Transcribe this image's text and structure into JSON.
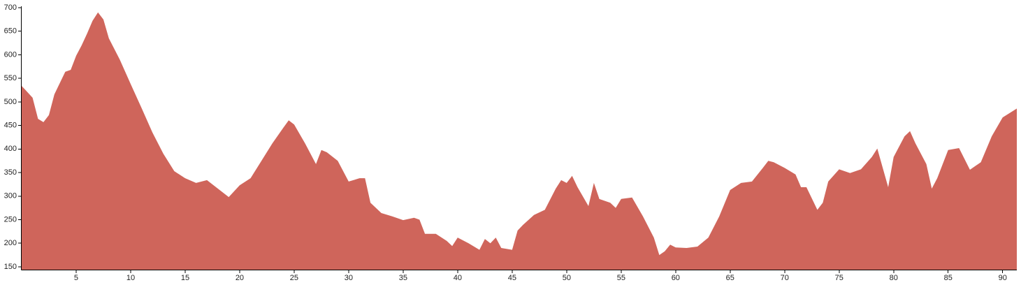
{
  "chart_data": {
    "type": "area",
    "color": "#cf655b",
    "x": [
      0,
      1,
      1.5,
      2,
      2.5,
      3,
      4,
      4.5,
      5,
      5.5,
      6,
      6.5,
      7,
      7.5,
      8,
      9,
      10,
      11,
      12,
      13,
      14,
      15,
      16,
      17,
      18,
      19,
      20,
      21,
      22,
      23,
      24,
      24.5,
      25,
      26,
      27,
      27.5,
      28,
      29,
      30,
      31,
      31.5,
      32,
      33,
      34,
      35,
      36,
      36.5,
      37,
      38,
      39,
      39.5,
      40,
      41,
      42,
      42.5,
      43,
      43.5,
      44,
      45,
      45.5,
      46,
      47,
      48,
      49,
      49.5,
      50,
      50.5,
      51,
      52,
      52.5,
      53,
      54,
      54.5,
      55,
      56,
      57,
      58,
      58.5,
      59,
      59.5,
      60,
      61,
      62,
      63,
      64,
      65,
      66,
      67,
      68,
      68.5,
      69,
      70,
      71,
      71.5,
      72,
      73,
      73.5,
      74,
      75,
      76,
      77,
      78,
      78.5,
      79,
      79.5,
      80,
      81,
      81.5,
      82,
      83,
      83.5,
      84,
      85,
      86,
      87,
      88,
      89,
      90,
      91.3
    ],
    "values": [
      534,
      509,
      464,
      457,
      472,
      516,
      564,
      568,
      598,
      620,
      645,
      672,
      690,
      675,
      635,
      590,
      538,
      487,
      435,
      390,
      353,
      338,
      328,
      334,
      316,
      298,
      323,
      338,
      375,
      412,
      445,
      461,
      452,
      412,
      368,
      398,
      393,
      375,
      331,
      338,
      338,
      286,
      264,
      257,
      249,
      254,
      250,
      220,
      220,
      205,
      194,
      212,
      200,
      186,
      209,
      200,
      212,
      190,
      186,
      227,
      239,
      260,
      271,
      316,
      334,
      328,
      343,
      319,
      279,
      328,
      294,
      286,
      275,
      294,
      297,
      257,
      212,
      175,
      183,
      197,
      191,
      190,
      193,
      212,
      257,
      313,
      328,
      331,
      360,
      375,
      372,
      360,
      346,
      319,
      319,
      271,
      286,
      331,
      357,
      349,
      357,
      383,
      401,
      360,
      319,
      383,
      427,
      438,
      412,
      368,
      316,
      338,
      398,
      402,
      356,
      372,
      427,
      467,
      486
    ],
    "xlim": [
      0,
      91.3
    ],
    "ylim": [
      144,
      700
    ],
    "xticks": [
      5,
      10,
      15,
      20,
      25,
      30,
      35,
      40,
      45,
      50,
      55,
      60,
      65,
      70,
      75,
      80,
      85,
      90
    ],
    "yticks": [
      150,
      200,
      250,
      300,
      350,
      400,
      450,
      500,
      550,
      600,
      650,
      700
    ]
  }
}
